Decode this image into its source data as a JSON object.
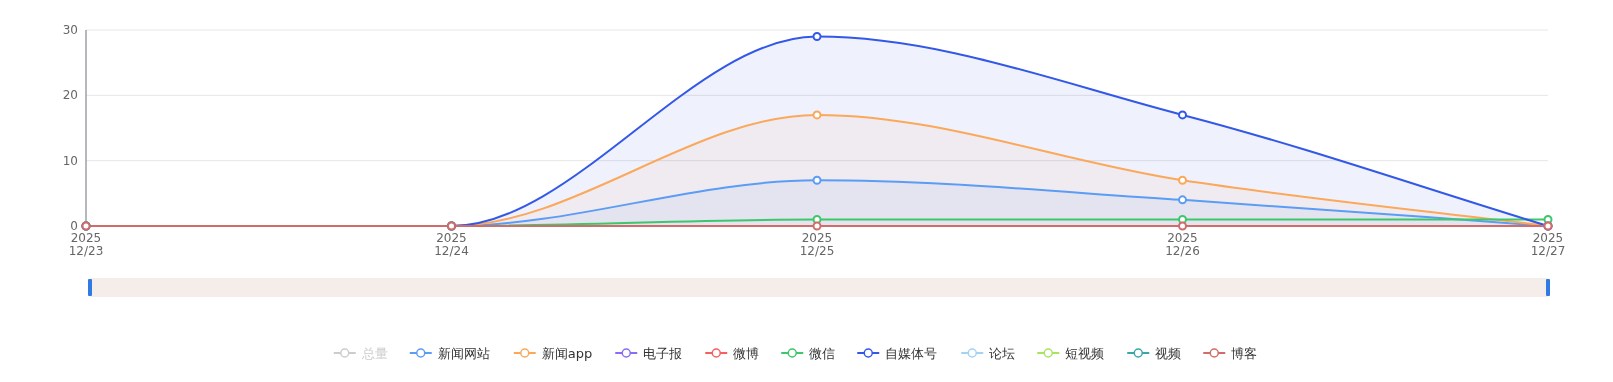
{
  "chart_data": {
    "type": "line",
    "categories": [
      "2025\n12/23",
      "2025\n12/24",
      "2025\n12/25",
      "2025\n12/26",
      "2025\n12/27"
    ],
    "ylim": [
      0,
      30
    ],
    "yticks": [
      0,
      10,
      20,
      30
    ],
    "grid": "y",
    "legend": "bottom",
    "marker": "circle",
    "line_style": "solid",
    "series": [
      {
        "name": "总量",
        "color": "#cccccc",
        "values": [
          null,
          null,
          null,
          null,
          null
        ]
      },
      {
        "name": "新闻网站",
        "type": "area",
        "color": "#5b9cf5",
        "values": [
          0,
          0,
          7,
          4,
          0
        ]
      },
      {
        "name": "新闻app",
        "type": "area",
        "color": "#fba85a",
        "values": [
          0,
          0,
          17,
          7,
          0
        ]
      },
      {
        "name": "电子报",
        "color": "#8a6cf5",
        "values": [
          null,
          null,
          null,
          null,
          null
        ]
      },
      {
        "name": "微博",
        "color": "#f5605f",
        "values": [
          null,
          null,
          null,
          null,
          null
        ]
      },
      {
        "name": "微信",
        "color": "#3dc76a",
        "values": [
          0,
          0,
          1,
          1,
          1
        ]
      },
      {
        "name": "自媒体号",
        "type": "area",
        "color": "#3358e8",
        "values": [
          0,
          0,
          29,
          17,
          0
        ]
      },
      {
        "name": "论坛",
        "color": "#a3d2f7",
        "values": [
          null,
          null,
          null,
          null,
          null
        ]
      },
      {
        "name": "短视频",
        "color": "#a8e460",
        "values": [
          null,
          null,
          null,
          null,
          null
        ]
      },
      {
        "name": "视频",
        "color": "#3aa7a6",
        "values": [
          null,
          null,
          null,
          null,
          null
        ]
      },
      {
        "name": "博客",
        "color": "#cf6d6a",
        "values": [
          0,
          0,
          0,
          0,
          0
        ]
      }
    ]
  }
}
